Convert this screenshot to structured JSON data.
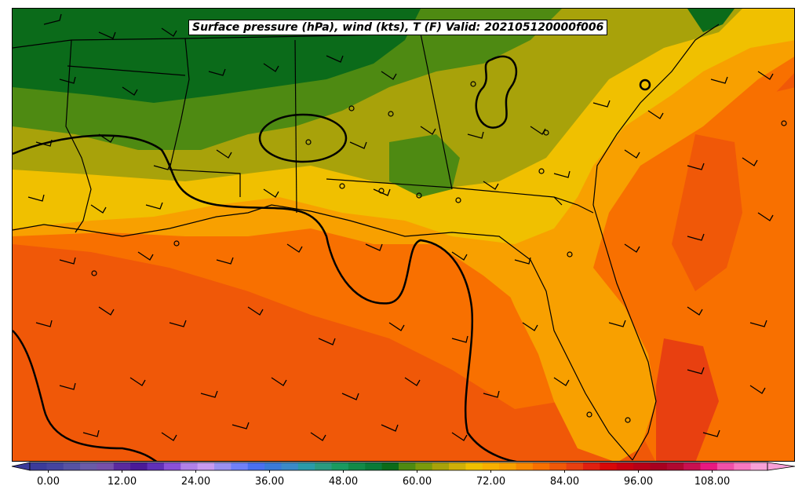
{
  "title": "Surface pressure (hPa), wind (kts), T (F) Valid: 202105120000f006",
  "colorbar": {
    "ticks": [
      "0.00",
      "12.00",
      "24.00",
      "36.00",
      "48.00",
      "60.00",
      "72.00",
      "84.00",
      "96.00",
      "108.00"
    ],
    "colors": [
      "#3b3b9a",
      "#45449e",
      "#5652a3",
      "#6a5ba8",
      "#7650aa",
      "#5a2a9e",
      "#4a1a98",
      "#6030b8",
      "#8a50d8",
      "#b080e8",
      "#c89af0",
      "#9a90f0",
      "#7080f8",
      "#4a70f0",
      "#3a7ad8",
      "#3a8ac8",
      "#2a9aa8",
      "#2a9a80",
      "#1a9a60",
      "#128a48",
      "#0a7a38",
      "#0b6b1a",
      "#4e8a12",
      "#7a9a0c",
      "#a8a20a",
      "#d0b008",
      "#f0c000",
      "#f8b000",
      "#f8a000",
      "#f88800",
      "#f87000",
      "#f05808",
      "#e84010",
      "#e02010",
      "#d80808",
      "#c80010",
      "#b80018",
      "#a80020",
      "#b00830",
      "#c81050",
      "#e81880",
      "#f050a8",
      "#f878c0",
      "#f8a0d8"
    ]
  },
  "map_colors": {
    "dark_green": "#0b6b1a",
    "green": "#4e8a12",
    "olive": "#a8a20a",
    "yellow": "#f0c000",
    "light_orange": "#f8a000",
    "orange": "#f87000",
    "dark_orange": "#f05808",
    "red_orange": "#e84010"
  }
}
